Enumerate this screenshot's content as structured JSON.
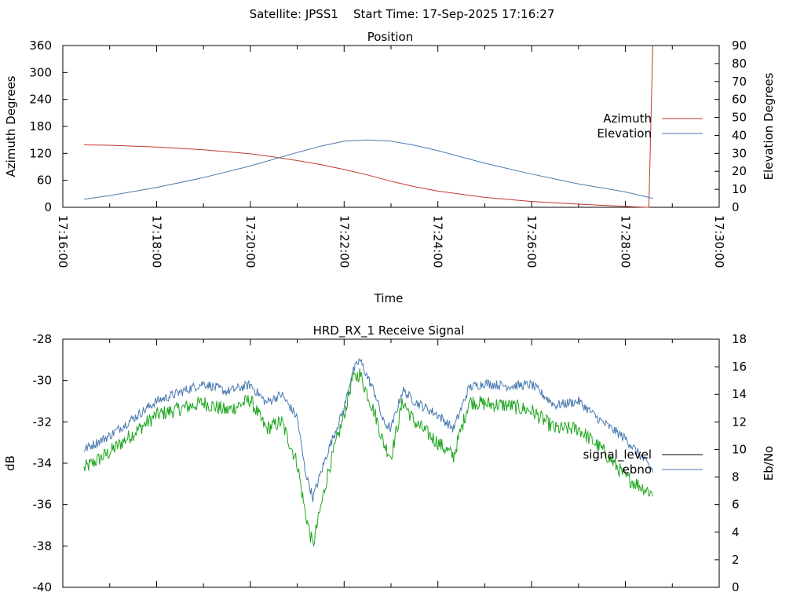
{
  "figure_title": "Satellite: JPSS1    Start Time: 17-Sep-2025 17:16:27",
  "chart_data": [
    {
      "type": "line",
      "title": "Position",
      "xlabel": "Time",
      "ylabel": "Azimuth Degrees",
      "y2label": "Elevation Degrees",
      "xlim": [
        "17:16:00",
        "17:30:00"
      ],
      "ylim": [
        0,
        360
      ],
      "y2lim": [
        0,
        90
      ],
      "x_ticks": [
        "17:16:00",
        "17:18:00",
        "17:20:00",
        "17:22:00",
        "17:24:00",
        "17:26:00",
        "17:28:00",
        "17:30:00"
      ],
      "y_ticks": [
        "0",
        "60",
        "120",
        "180",
        "240",
        "300",
        "360"
      ],
      "y2_ticks": [
        "0",
        "10",
        "20",
        "30",
        "40",
        "50",
        "60",
        "70",
        "80",
        "90"
      ],
      "legend_position": "right",
      "series": [
        {
          "name": "Azimuth",
          "axis": "left",
          "color": "#c0392b",
          "x": [
            "17:16:27",
            "17:17:00",
            "17:18:00",
            "17:19:00",
            "17:20:00",
            "17:20:30",
            "17:21:00",
            "17:21:30",
            "17:22:00",
            "17:22:30",
            "17:23:00",
            "17:23:30",
            "17:24:00",
            "17:25:00",
            "17:26:00",
            "17:27:00",
            "17:28:00",
            "17:28:25",
            "17:28:30",
            "17:28:35"
          ],
          "values": [
            139,
            138,
            134,
            128,
            119,
            112,
            104,
            95,
            84,
            72,
            58,
            46,
            36,
            22,
            13,
            7,
            2,
            0,
            0,
            360
          ]
        },
        {
          "name": "Elevation",
          "axis": "right",
          "color": "#4a7ab0",
          "x": [
            "17:16:27",
            "17:17:00",
            "17:18:00",
            "17:19:00",
            "17:20:00",
            "17:21:00",
            "17:21:30",
            "17:22:00",
            "17:22:30",
            "17:23:00",
            "17:23:30",
            "17:24:00",
            "17:25:00",
            "17:26:00",
            "17:27:00",
            "17:28:00",
            "17:28:35"
          ],
          "values": [
            4.5,
            6.5,
            11,
            16.5,
            23,
            30.5,
            34,
            36.8,
            37.5,
            36.8,
            34.5,
            31.5,
            24.5,
            18.5,
            13,
            8.5,
            5
          ]
        }
      ]
    },
    {
      "type": "line",
      "title": "HRD_RX_1 Receive Signal",
      "ylabel": "dB",
      "y2label": "Eb/No",
      "ylim": [
        -40,
        -28
      ],
      "y2lim": [
        0,
        18
      ],
      "y_ticks": [
        "-40",
        "-38",
        "-36",
        "-34",
        "-32",
        "-30",
        "-28"
      ],
      "y2_ticks": [
        "0",
        "2",
        "4",
        "6",
        "8",
        "10",
        "12",
        "14",
        "16",
        "18"
      ],
      "legend_position": "right",
      "series": [
        {
          "name": "signal_level",
          "axis": "left",
          "color": "#000000",
          "x": [],
          "values": []
        },
        {
          "name": "ebno",
          "axis": "right",
          "color": "#4a7ab0",
          "x": [
            "17:16:27",
            "17:17:00",
            "17:18:00",
            "17:19:00",
            "17:19:30",
            "17:20:00",
            "17:20:20",
            "17:20:40",
            "17:21:00",
            "17:21:10",
            "17:21:20",
            "17:21:40",
            "17:22:00",
            "17:22:10",
            "17:22:20",
            "17:22:40",
            "17:22:50",
            "17:23:00",
            "17:23:15",
            "17:23:30",
            "17:24:00",
            "17:24:10",
            "17:24:20",
            "17:24:40",
            "17:25:00",
            "17:25:30",
            "17:26:00",
            "17:26:30",
            "17:27:00",
            "17:27:30",
            "17:28:00",
            "17:28:35"
          ],
          "values": [
            10,
            11,
            13.5,
            14.8,
            14.2,
            14.7,
            13.4,
            14,
            12.3,
            8.5,
            6.5,
            10,
            13,
            15.5,
            16.5,
            14,
            12,
            11.5,
            14.3,
            13.5,
            12.5,
            12,
            11.5,
            14.5,
            14.8,
            14.6,
            14.7,
            13.2,
            13.5,
            12,
            10.8,
            8.5
          ]
        },
        {
          "name": "",
          "axis": "right",
          "color": "#1ea51e",
          "x": [
            "17:16:27",
            "17:17:00",
            "17:18:00",
            "17:19:00",
            "17:19:30",
            "17:20:00",
            "17:20:20",
            "17:20:40",
            "17:21:00",
            "17:21:10",
            "17:21:20",
            "17:21:40",
            "17:22:00",
            "17:22:10",
            "17:22:20",
            "17:22:40",
            "17:22:50",
            "17:23:00",
            "17:23:15",
            "17:23:30",
            "17:24:00",
            "17:24:10",
            "17:24:20",
            "17:24:40",
            "17:25:00",
            "17:25:30",
            "17:26:00",
            "17:26:30",
            "17:27:00",
            "17:27:30",
            "17:28:00",
            "17:28:35"
          ],
          "values": [
            8.6,
            9.8,
            12.5,
            13.4,
            12.8,
            13.6,
            11.5,
            12,
            9,
            5.5,
            3,
            8.5,
            12.5,
            15,
            15.5,
            12.5,
            10.5,
            9.5,
            13.5,
            12,
            10.5,
            10,
            9.5,
            13.5,
            13.3,
            13.2,
            12.8,
            11.5,
            11.5,
            10,
            8,
            6.8
          ]
        }
      ]
    }
  ]
}
